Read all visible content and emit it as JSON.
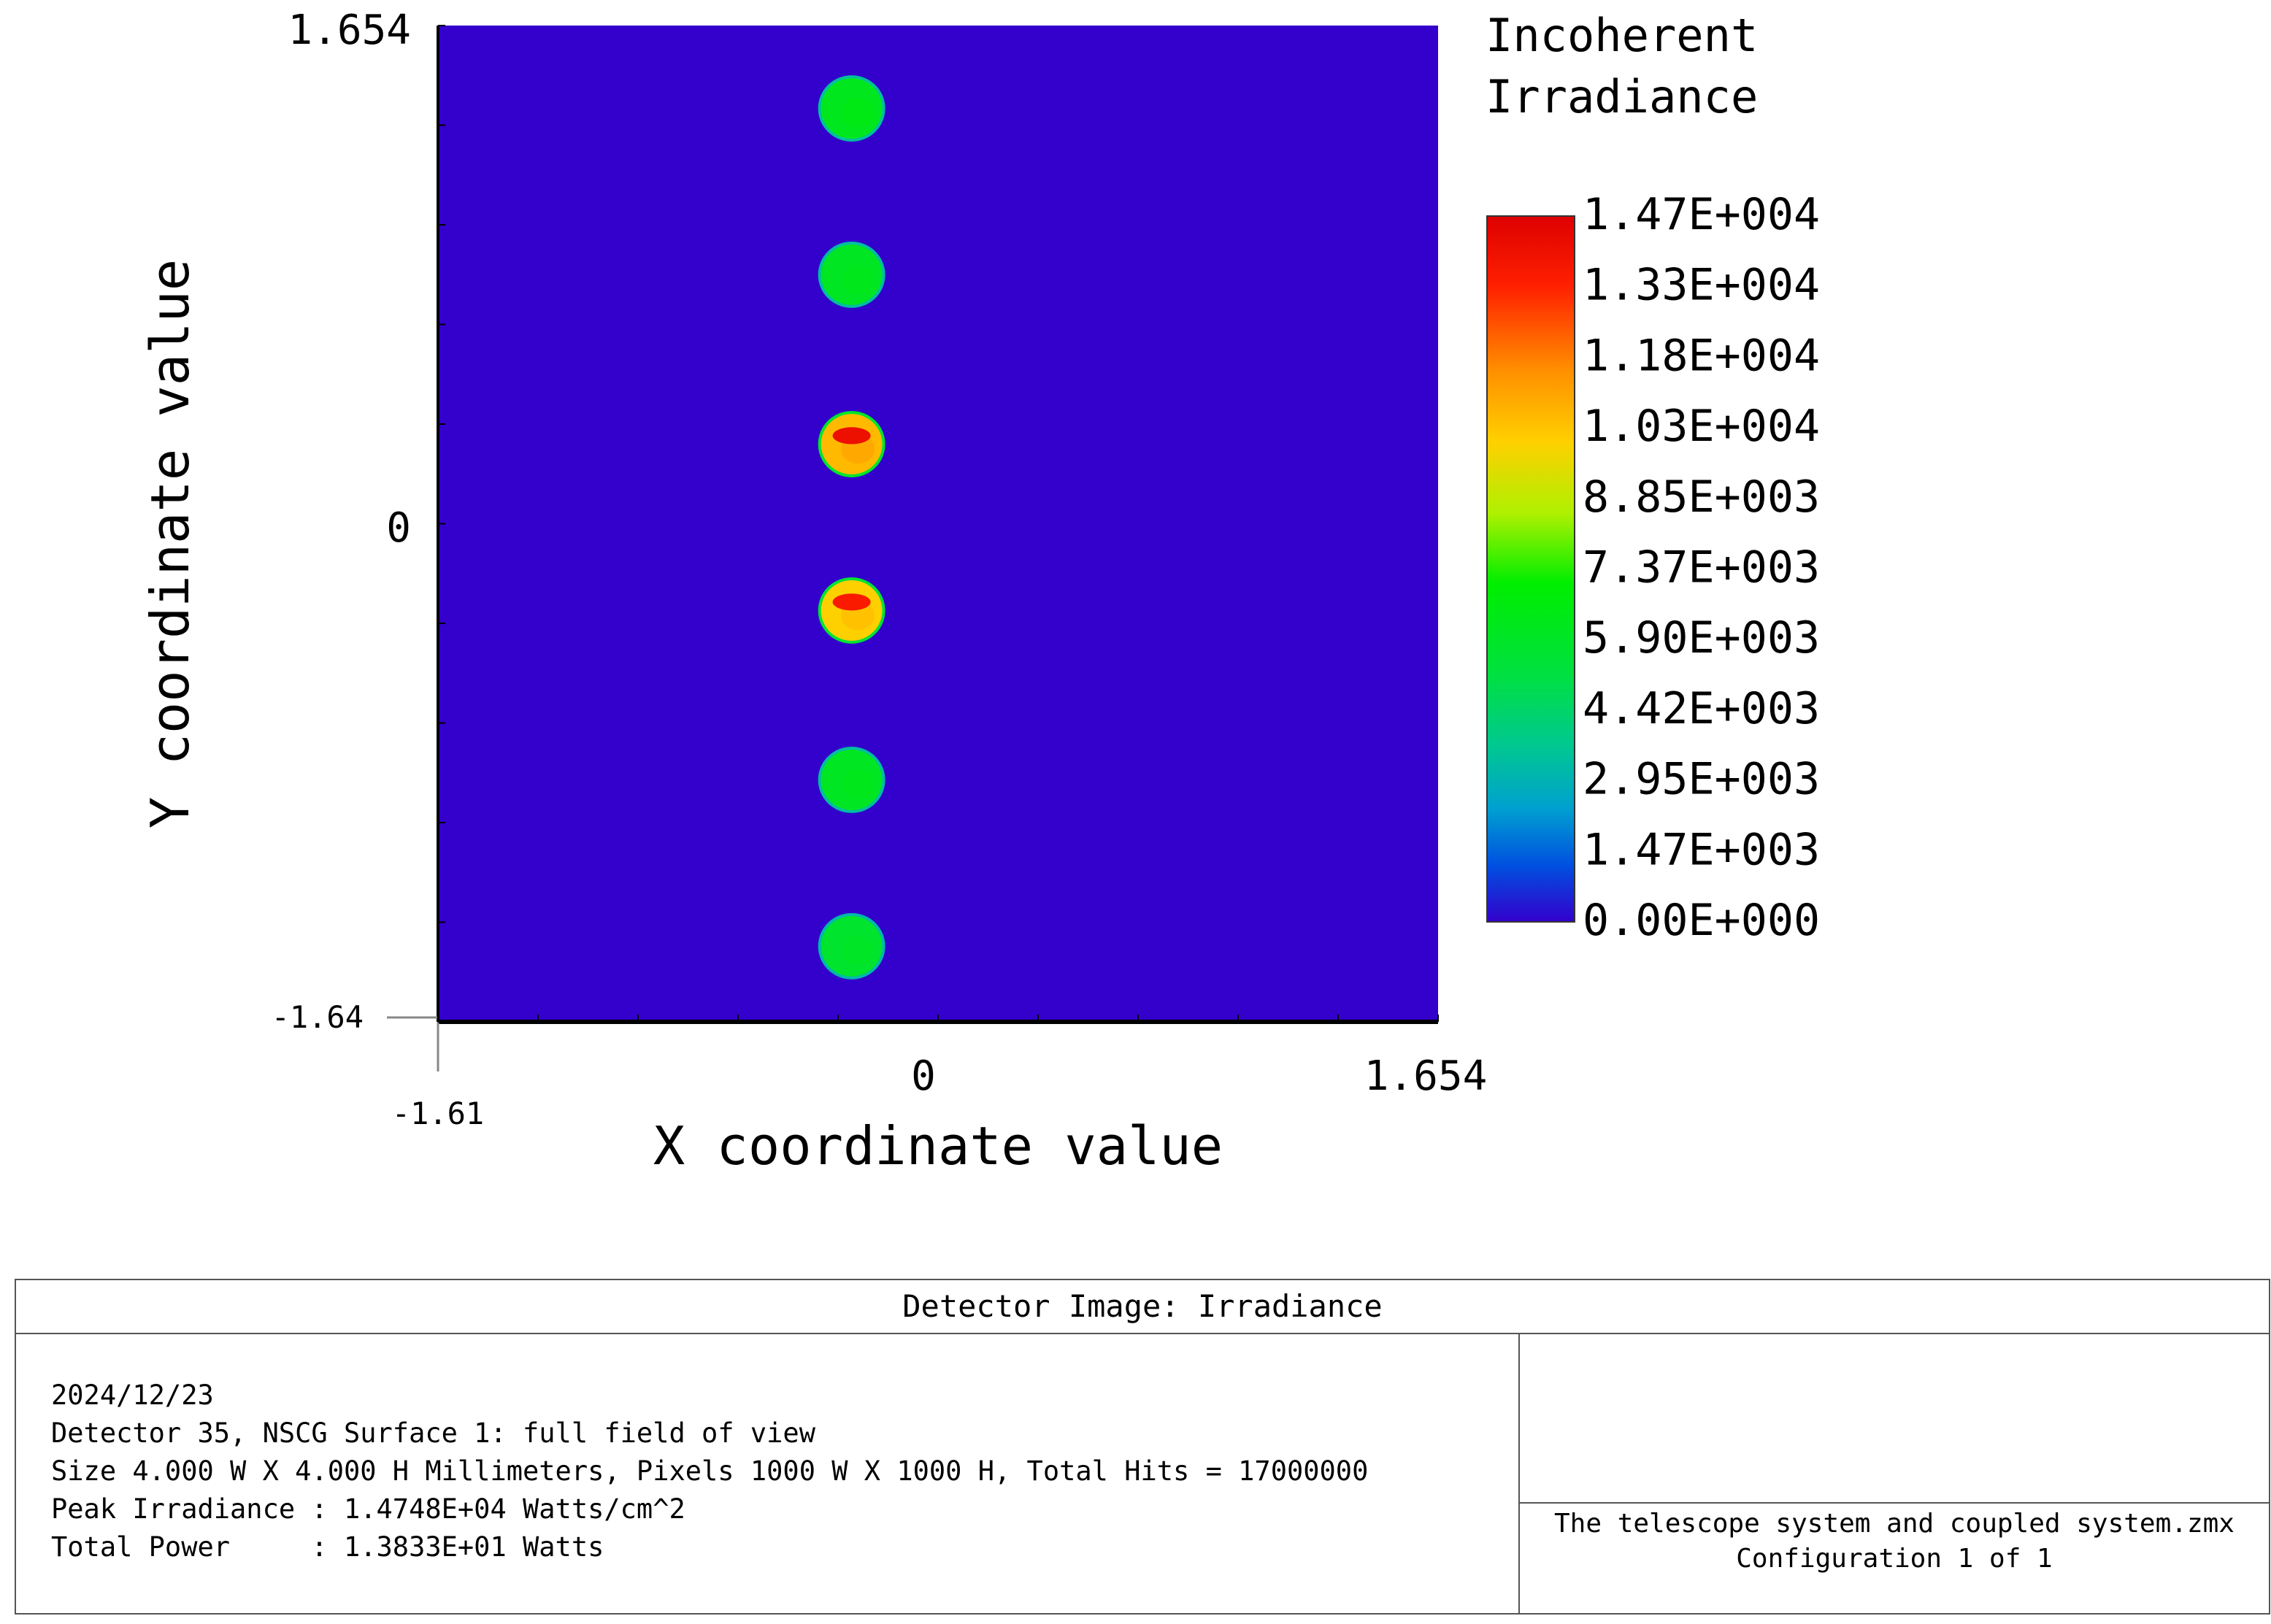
{
  "chart_data": {
    "type": "heatmap",
    "legend_title": [
      "Incoherent",
      "Irradiance"
    ],
    "xlabel": "X coordinate value",
    "ylabel": "Y coordinate value",
    "xlim": [
      -1.61,
      1.654
    ],
    "ylim": [
      -1.64,
      1.654
    ],
    "x_tick_labels": [
      {
        "value": -1.61,
        "label": "-1.61"
      },
      {
        "value": 0,
        "label": "0"
      },
      {
        "value": 1.654,
        "label": "1.654"
      }
    ],
    "y_tick_labels": [
      {
        "value": 1.654,
        "label": "1.654"
      },
      {
        "value": 0,
        "label": "0"
      },
      {
        "value": -1.64,
        "label": "-1.64"
      }
    ],
    "background_color": "#3300cc",
    "colorbar_labels": [
      "1.47E+004",
      "1.33E+004",
      "1.18E+004",
      "1.03E+004",
      "8.85E+003",
      "7.37E+003",
      "5.90E+003",
      "4.42E+003",
      "2.95E+003",
      "1.47E+003",
      "0.00E+000"
    ],
    "colorbar_colors": [
      "#e00000",
      "#ff3000",
      "#ff9000",
      "#ffd000",
      "#b8f000",
      "#00ee00",
      "#00e040",
      "#00c880",
      "#00a0c0",
      "#0050e0",
      "#3300cc"
    ],
    "spots": [
      {
        "x": -0.26,
        "y": 1.38,
        "r": 0.1,
        "peak": 6200
      },
      {
        "x": -0.26,
        "y": 0.83,
        "r": 0.1,
        "peak": 6000
      },
      {
        "x": -0.26,
        "y": 0.27,
        "r": 0.1,
        "peak": 10500,
        "hot": 14000
      },
      {
        "x": -0.26,
        "y": -0.28,
        "r": 0.1,
        "peak": 10000,
        "hot": 13500
      },
      {
        "x": -0.26,
        "y": -0.84,
        "r": 0.1,
        "peak": 6000
      },
      {
        "x": -0.26,
        "y": -1.39,
        "r": 0.1,
        "peak": 5700
      }
    ]
  },
  "info": {
    "title": "Detector Image: Irradiance",
    "lines": [
      "2024/12/23",
      "Detector 35, NSCG Surface 1: full field of view",
      "Size 4.000 W X 4.000 H Millimeters, Pixels 1000 W X 1000 H, Total Hits = 17000000",
      "Peak Irradiance : 1.4748E+04 Watts/cm^2",
      "Total Power     : 1.3833E+01 Watts"
    ],
    "file_name": "The telescope system and coupled system.zmx",
    "configuration": "Configuration 1 of 1"
  }
}
